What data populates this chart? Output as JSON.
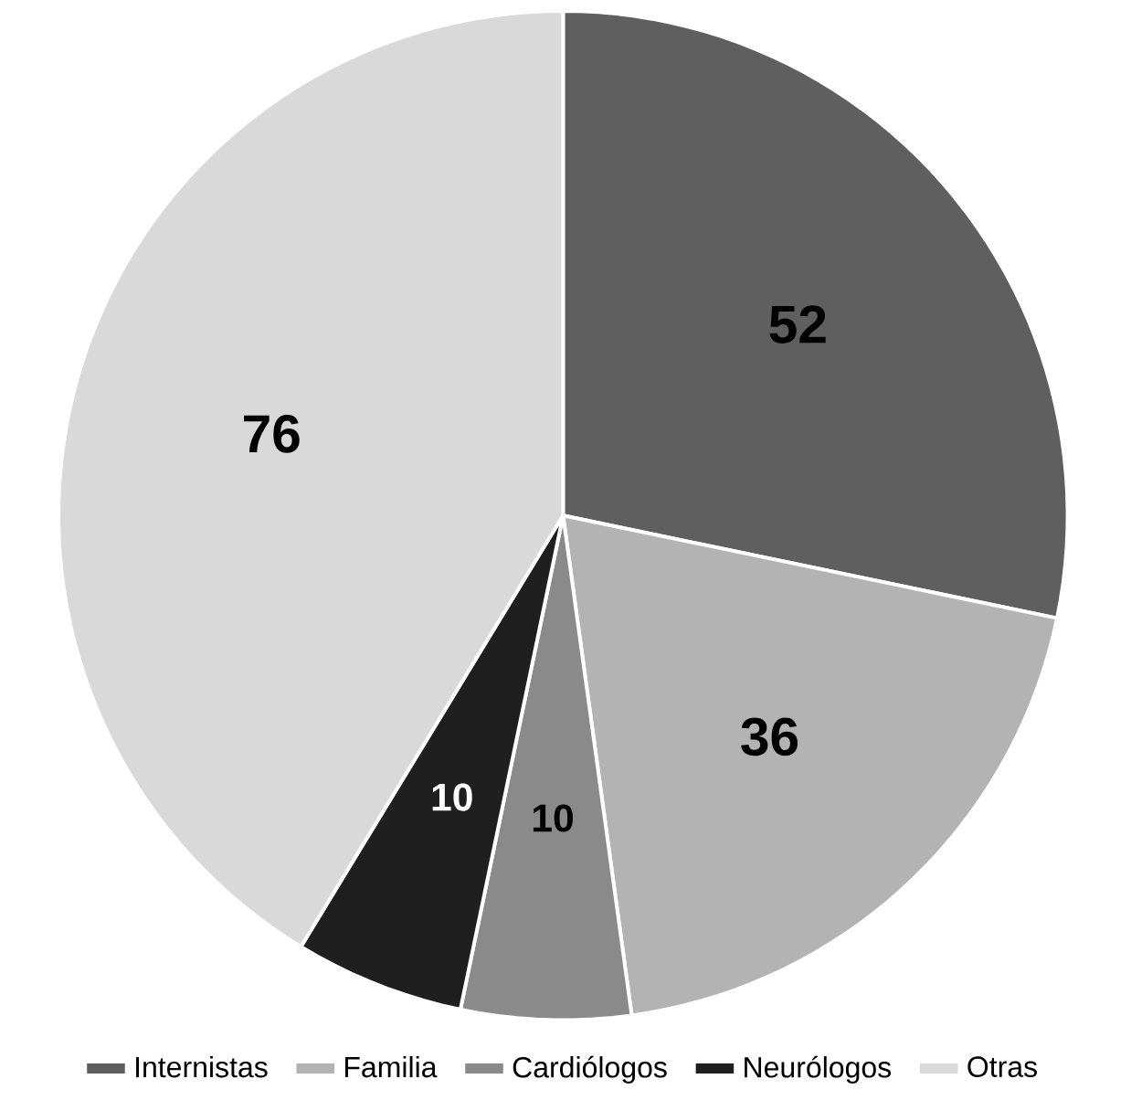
{
  "chart_data": {
    "type": "pie",
    "categories": [
      "Internistas",
      "Familia",
      "Cardiólogos",
      "Neurólogos",
      "Otras"
    ],
    "values": [
      52,
      36,
      10,
      10,
      76
    ],
    "colors": [
      "#5f5f5f",
      "#b3b3b3",
      "#8a8a8a",
      "#1f1f1f",
      "#d9d9d9"
    ],
    "data_labels": true,
    "legend": "bottom"
  }
}
